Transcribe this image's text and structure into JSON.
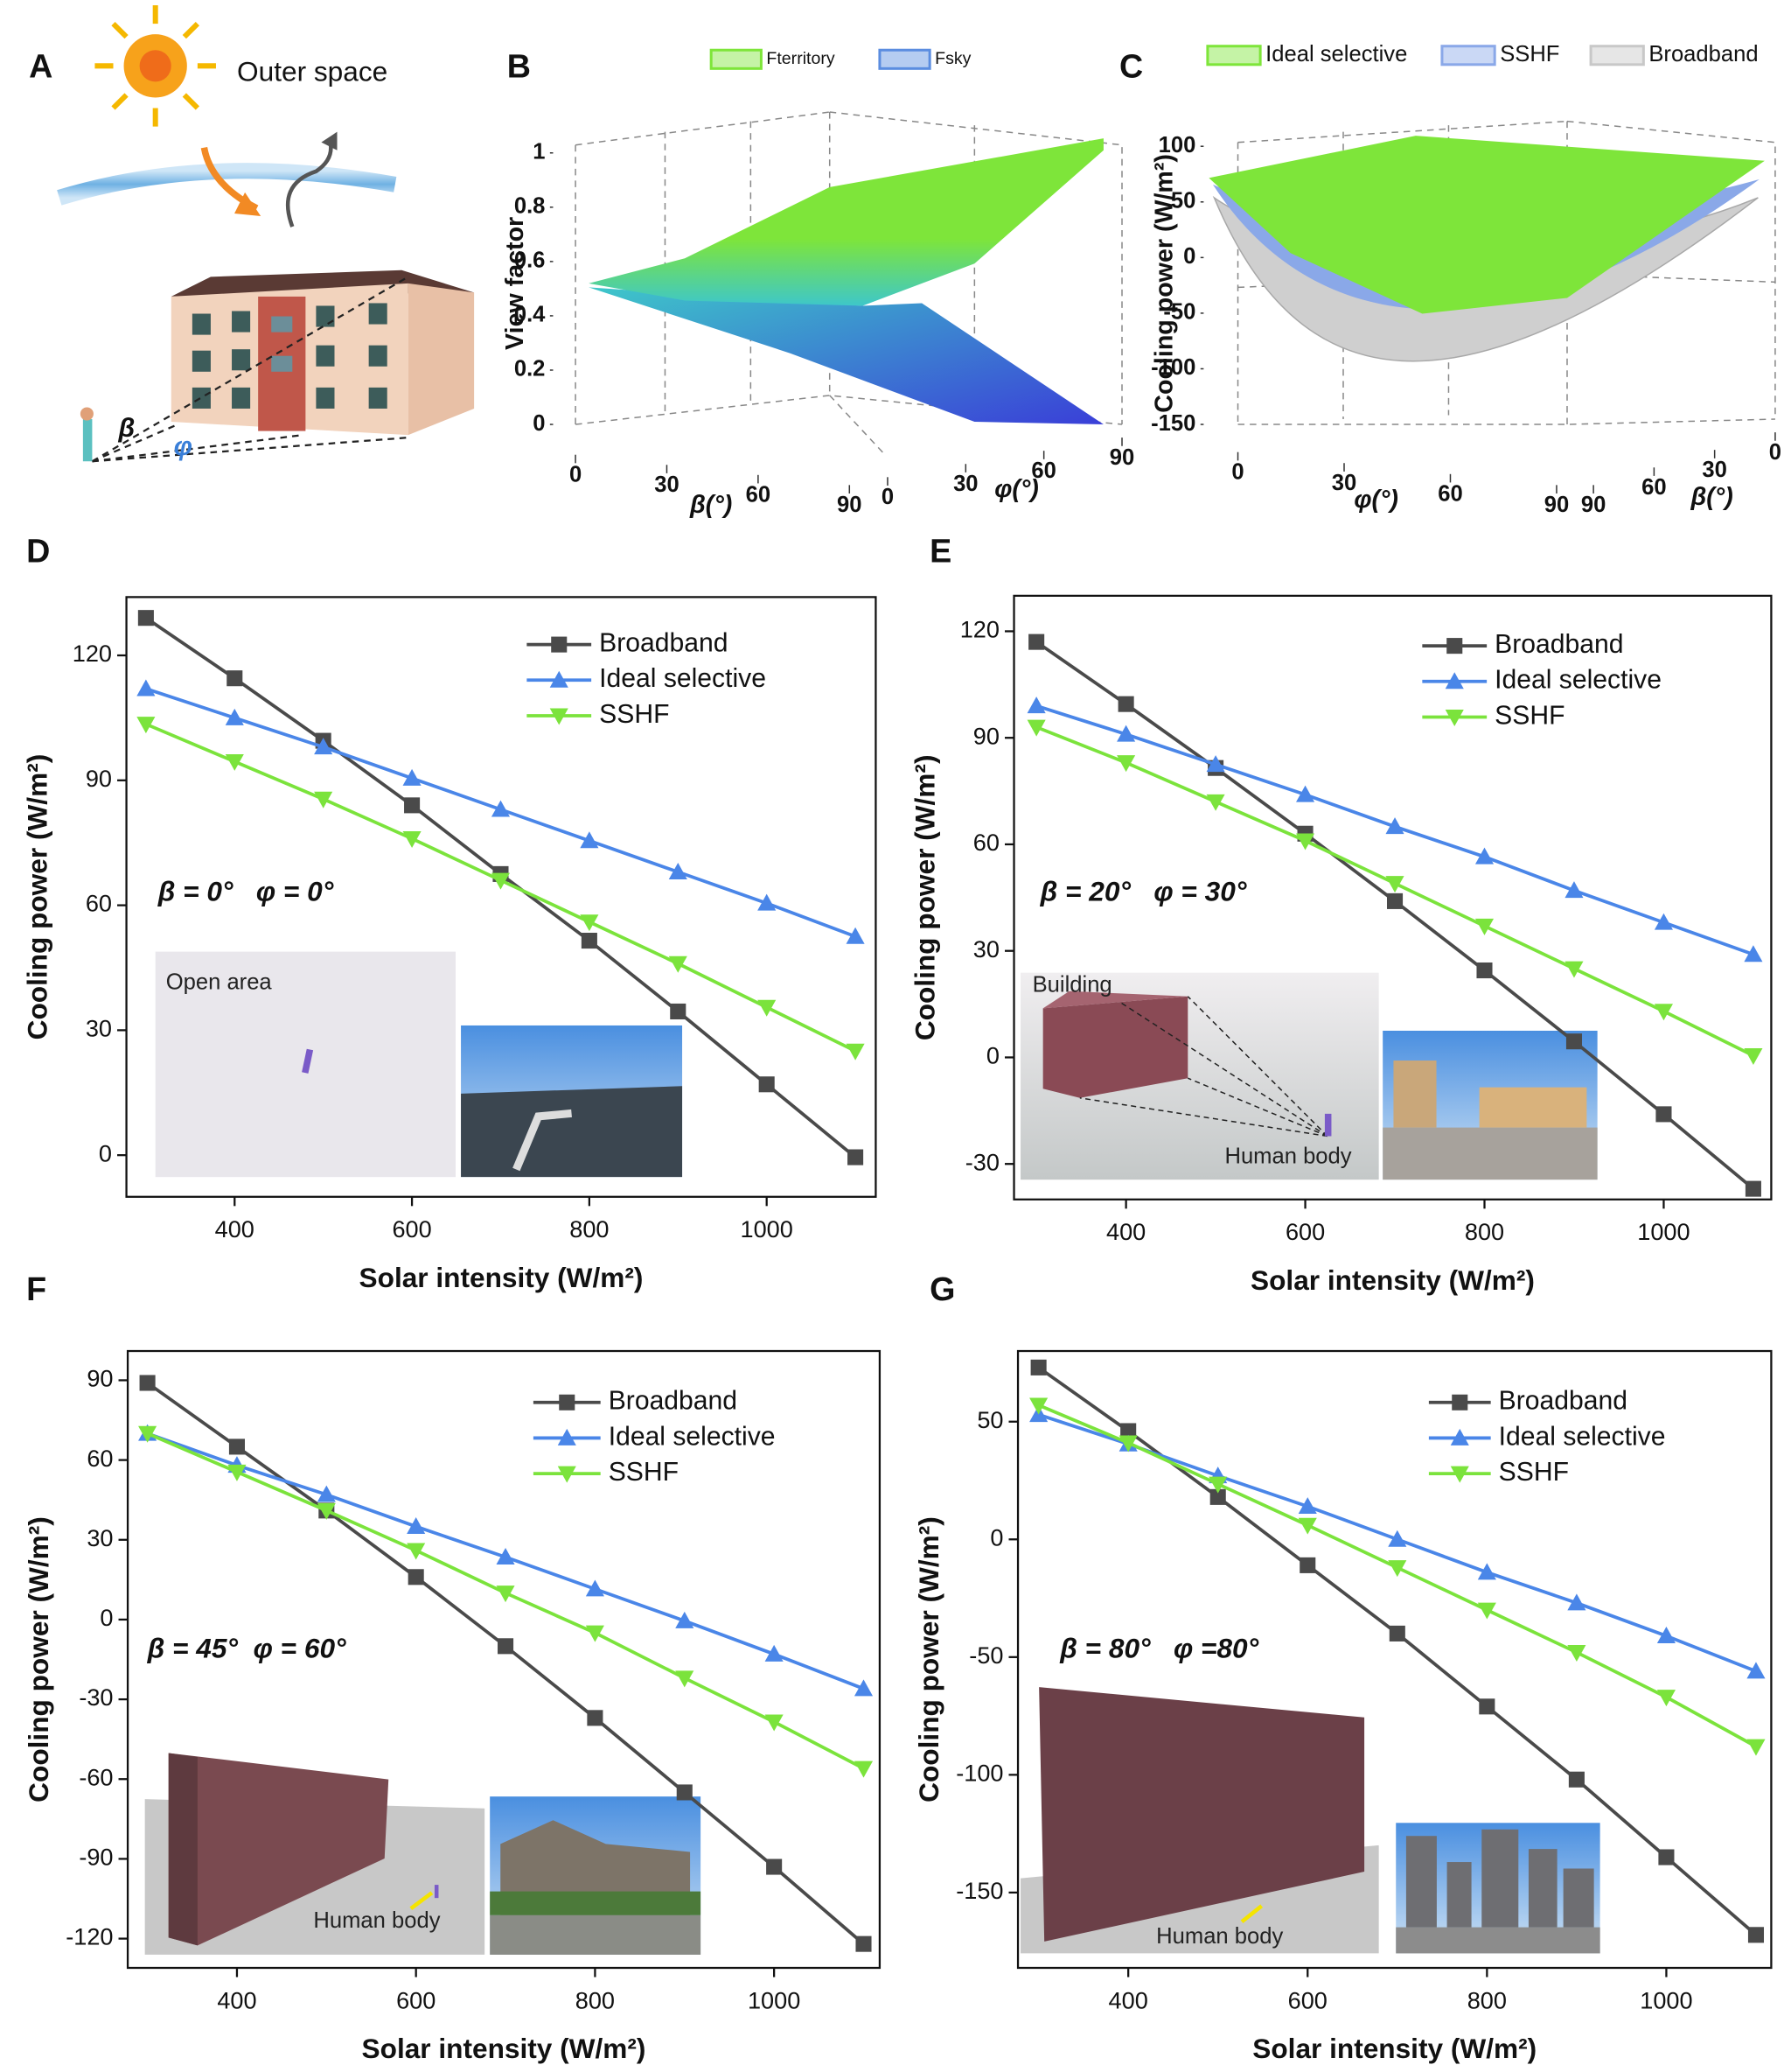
{
  "illustration": {
    "label": "A",
    "caption": "Outer space",
    "beta": "β",
    "phi": "φ"
  },
  "chart_data": [
    {
      "type": "surface",
      "label": "B",
      "series": [
        {
          "name": "Fterritory",
          "color": "#7ee53a"
        },
        {
          "name": "Fsky",
          "color": "#5b8de0"
        }
      ],
      "zlabel": "View factor",
      "xlabel": "β(°)",
      "ylabel": "φ(°)",
      "zlim": [
        0,
        1
      ],
      "zticks": [
        0,
        0.2,
        0.4,
        0.6,
        0.8,
        1
      ],
      "xlim": [
        0,
        90
      ],
      "xticks": [
        0,
        30,
        60,
        90
      ],
      "ylim": [
        0,
        90
      ],
      "yticks": [
        0,
        30,
        60,
        90
      ]
    },
    {
      "type": "surface",
      "label": "C",
      "series": [
        {
          "name": "Ideal selective",
          "color": "#7ee53a"
        },
        {
          "name": "SSHF",
          "color": "#8aa8e8"
        },
        {
          "name": "Broadband",
          "color": "#c8c8c8"
        }
      ],
      "zlabel": "Cooling power (W/m²)",
      "xlabel": "φ(°)",
      "ylabel": "β(°)",
      "zlim": [
        -150,
        100
      ],
      "zticks": [
        -150,
        -100,
        -50,
        0,
        50,
        100
      ],
      "xlim": [
        0,
        90
      ],
      "xticks": [
        0,
        30,
        60,
        90
      ],
      "ylim": [
        0,
        90
      ],
      "yticks": [
        0,
        30,
        60,
        90
      ]
    },
    {
      "type": "line",
      "label": "D",
      "xlabel": "Solar intensity (W/m²)",
      "ylabel": "Cooling power (W/m²)",
      "annotation": "β = 0°   φ = 0°",
      "inset_labels": [
        "Open area"
      ],
      "x": [
        300,
        400,
        500,
        600,
        700,
        800,
        900,
        1000,
        1100
      ],
      "xlim": [
        278,
        1123
      ],
      "xticks": [
        400,
        600,
        800,
        1000
      ],
      "ylim": [
        -10,
        134
      ],
      "yticks": [
        0,
        30,
        60,
        90,
        120
      ],
      "series": [
        {
          "name": "Broadband",
          "color": "#4a4a4a",
          "marker": "square",
          "values": [
            129,
            114.5,
            99.5,
            84,
            67.5,
            51.5,
            34.5,
            17,
            -0.5
          ]
        },
        {
          "name": "Ideal selective",
          "color": "#4a86e8",
          "marker": "triangle-up",
          "values": [
            112,
            105,
            98,
            90.5,
            83,
            75.5,
            68,
            60.5,
            52.5
          ]
        },
        {
          "name": "SSHF",
          "color": "#7be33c",
          "marker": "triangle-down",
          "values": [
            103.5,
            94.5,
            85.5,
            76,
            66,
            56,
            46,
            35.5,
            25
          ]
        }
      ]
    },
    {
      "type": "line",
      "label": "E",
      "xlabel": "Solar intensity (W/m²)",
      "ylabel": "Cooling power (W/m²)",
      "annotation": "β = 20°   φ = 30°",
      "inset_labels": [
        "Building",
        "Human body"
      ],
      "x": [
        300,
        400,
        500,
        600,
        700,
        800,
        900,
        1000,
        1100
      ],
      "xlim": [
        275,
        1120
      ],
      "xticks": [
        400,
        600,
        800,
        1000
      ],
      "ylim": [
        -40,
        130
      ],
      "yticks": [
        -30,
        0,
        30,
        60,
        90,
        120
      ],
      "series": [
        {
          "name": "Broadband",
          "color": "#4a4a4a",
          "marker": "square",
          "values": [
            117,
            99.5,
            81.5,
            63,
            44,
            24.5,
            4.5,
            -16,
            -37
          ]
        },
        {
          "name": "Ideal selective",
          "color": "#4a86e8",
          "marker": "triangle-up",
          "values": [
            99,
            91,
            82.5,
            74,
            65,
            56.5,
            47,
            38,
            29
          ]
        },
        {
          "name": "SSHF",
          "color": "#7be33c",
          "marker": "triangle-down",
          "values": [
            93,
            83,
            72,
            61,
            49,
            37,
            25,
            13,
            0.5
          ]
        }
      ]
    },
    {
      "type": "line",
      "label": "F",
      "xlabel": "Solar intensity (W/m²)",
      "ylabel": "Cooling power (W/m²)",
      "annotation": "β = 45°  φ = 60°",
      "inset_labels": [
        "Human body"
      ],
      "x": [
        300,
        400,
        500,
        600,
        700,
        800,
        900,
        1000,
        1100
      ],
      "xlim": [
        278,
        1118
      ],
      "xticks": [
        400,
        600,
        800,
        1000
      ],
      "ylim": [
        -131,
        101
      ],
      "yticks": [
        -120,
        -90,
        -60,
        -30,
        0,
        30,
        60,
        90
      ],
      "series": [
        {
          "name": "Broadband",
          "color": "#4a4a4a",
          "marker": "square",
          "values": [
            89,
            65,
            41,
            16,
            -10,
            -37,
            -65,
            -93,
            -122
          ]
        },
        {
          "name": "Ideal selective",
          "color": "#4a86e8",
          "marker": "triangle-up",
          "values": [
            70,
            58,
            47,
            35,
            23.5,
            11.5,
            -0.5,
            -13,
            -26
          ]
        },
        {
          "name": "SSHF",
          "color": "#7be33c",
          "marker": "triangle-down",
          "values": [
            70,
            55.5,
            41,
            26,
            10,
            -5,
            -22,
            -38.5,
            -56
          ]
        }
      ]
    },
    {
      "type": "line",
      "label": "G",
      "xlabel": "Solar intensity (W/m²)",
      "ylabel": "Cooling power (W/m²)",
      "annotation": "β = 80°   φ =80°",
      "inset_labels": [
        "Human body"
      ],
      "x": [
        300,
        400,
        500,
        600,
        700,
        800,
        900,
        1000,
        1100
      ],
      "xlim": [
        277,
        1117
      ],
      "xticks": [
        400,
        600,
        800,
        1000
      ],
      "ylim": [
        -182,
        80
      ],
      "yticks": [
        -150,
        -100,
        -50,
        0,
        50
      ],
      "series": [
        {
          "name": "Broadband",
          "color": "#4a4a4a",
          "marker": "square",
          "values": [
            73,
            46,
            18,
            -11,
            -40,
            -71,
            -102,
            -135,
            -168
          ]
        },
        {
          "name": "Ideal selective",
          "color": "#4a86e8",
          "marker": "triangle-up",
          "values": [
            53,
            40.5,
            27,
            14,
            0,
            -14,
            -27,
            -41,
            -56
          ]
        },
        {
          "name": "SSHF",
          "color": "#7be33c",
          "marker": "triangle-down",
          "values": [
            57,
            41,
            23.5,
            6,
            -12,
            -30,
            -48,
            -67,
            -88
          ]
        }
      ]
    }
  ]
}
